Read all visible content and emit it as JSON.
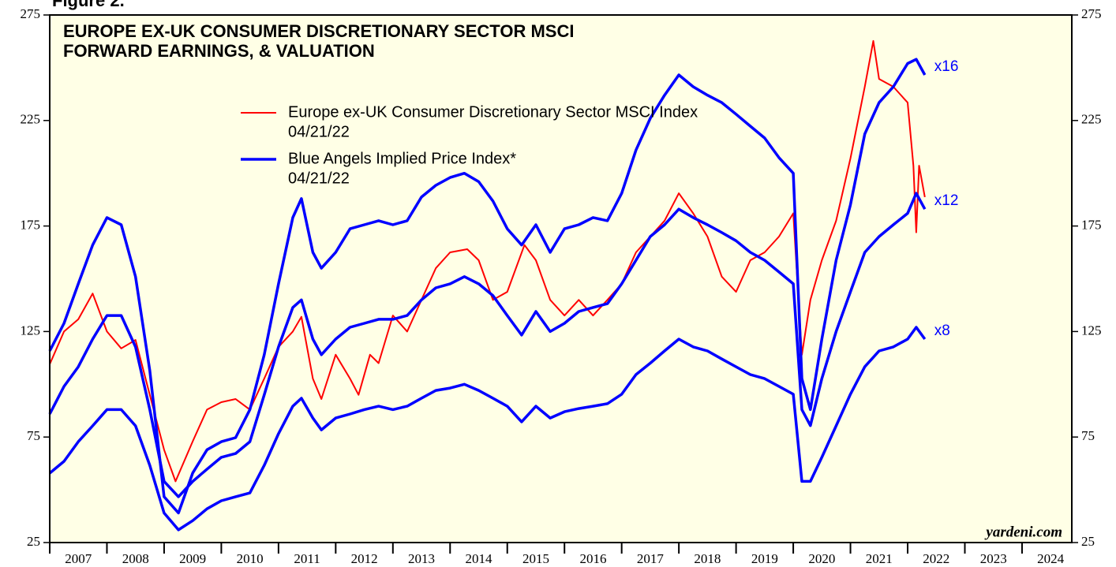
{
  "chart_data": {
    "type": "line",
    "figure_label": "Figure 2.",
    "title": [
      "EUROPE EX-UK CONSUMER DISCRETIONARY SECTOR MSCI",
      "FORWARD EARNINGS, & VALUATION"
    ],
    "source": "yardeni.com",
    "xlim": [
      2007,
      2024.87
    ],
    "xticks": [
      2007,
      2008,
      2009,
      2010,
      2011,
      2012,
      2013,
      2014,
      2015,
      2016,
      2017,
      2018,
      2019,
      2020,
      2021,
      2022,
      2023,
      2024,
      2025
    ],
    "xlabels": [
      2007,
      2008,
      2009,
      2010,
      2011,
      2012,
      2013,
      2014,
      2015,
      2016,
      2017,
      2018,
      2019,
      2020,
      2021,
      2022,
      2023,
      2024
    ],
    "ylim": [
      25,
      275
    ],
    "yticks": [
      25,
      75,
      125,
      175,
      225,
      275
    ],
    "y2lim": [
      25,
      275
    ],
    "y2ticks": [
      25,
      75,
      125,
      175,
      225,
      275
    ],
    "background": "#ffffe6",
    "series": [
      {
        "name": "Europe ex-UK Consumer Discretionary Sector MSCI Index",
        "date": "04/21/22",
        "color": "#ff0000",
        "width": 2,
        "x": [
          2007.0,
          2007.25,
          2007.5,
          2007.75,
          2008.0,
          2008.25,
          2008.5,
          2008.75,
          2009.0,
          2009.2,
          2009.5,
          2009.75,
          2010.0,
          2010.25,
          2010.5,
          2010.75,
          2011.0,
          2011.25,
          2011.4,
          2011.6,
          2011.75,
          2012.0,
          2012.25,
          2012.4,
          2012.6,
          2012.75,
          2013.0,
          2013.25,
          2013.5,
          2013.75,
          2014.0,
          2014.3,
          2014.5,
          2014.75,
          2015.0,
          2015.3,
          2015.5,
          2015.75,
          2016.0,
          2016.25,
          2016.5,
          2016.75,
          2017.0,
          2017.25,
          2017.5,
          2017.75,
          2018.0,
          2018.25,
          2018.5,
          2018.75,
          2019.0,
          2019.25,
          2019.5,
          2019.75,
          2020.0,
          2020.15,
          2020.3,
          2020.5,
          2020.75,
          2021.0,
          2021.25,
          2021.4,
          2021.5,
          2021.75,
          2022.0,
          2022.1,
          2022.15,
          2022.2,
          2022.3
        ],
        "values": [
          109.5,
          125,
          130.8,
          143,
          125,
          117,
          121,
          95,
          69,
          54,
          73,
          88,
          91.5,
          93,
          88,
          102.7,
          117.7,
          125,
          132,
          102.7,
          93,
          114,
          102.7,
          95,
          114,
          110,
          132.6,
          125,
          140,
          155,
          162.5,
          164,
          158.8,
          140,
          143.8,
          166,
          158.8,
          140,
          132.6,
          140,
          132.6,
          140,
          147.6,
          162.5,
          170,
          177.5,
          190.5,
          181,
          170,
          151,
          143.8,
          158.8,
          162.5,
          170,
          181,
          114,
          140,
          158.8,
          177.5,
          207,
          241,
          262.7,
          244.7,
          241,
          233.5,
          203.6,
          172,
          203.6,
          188.7
        ]
      },
      {
        "name": "Blue Angels Implied Price Index*",
        "date": "04/21/22",
        "label": "x16",
        "color": "#0000ff",
        "width": 3.5,
        "x": [
          2007.0,
          2007.25,
          2007.5,
          2007.75,
          2008.0,
          2008.25,
          2008.5,
          2008.75,
          2009.0,
          2009.25,
          2009.5,
          2009.75,
          2010.0,
          2010.25,
          2010.5,
          2010.75,
          2011.0,
          2011.25,
          2011.4,
          2011.6,
          2011.75,
          2012.0,
          2012.25,
          2012.5,
          2012.75,
          2013.0,
          2013.25,
          2013.5,
          2013.75,
          2014.0,
          2014.25,
          2014.5,
          2014.75,
          2015.0,
          2015.25,
          2015.5,
          2015.75,
          2016.0,
          2016.25,
          2016.5,
          2016.75,
          2017.0,
          2017.25,
          2017.5,
          2017.75,
          2018.0,
          2018.25,
          2018.5,
          2018.75,
          2019.0,
          2019.25,
          2019.5,
          2019.75,
          2020.0,
          2020.15,
          2020.3,
          2020.5,
          2020.75,
          2021.0,
          2021.25,
          2021.5,
          2021.75,
          2022.0,
          2022.15,
          2022.3
        ],
        "values": [
          115.8,
          128.9,
          147.6,
          166,
          179,
          175.6,
          151,
          106.5,
          46.7,
          39,
          58,
          69,
          72.8,
          74.7,
          88,
          114,
          147.6,
          179,
          188,
          162.5,
          155,
          162.5,
          173.7,
          175.6,
          177.5,
          175.6,
          177.5,
          188.7,
          194.3,
          198,
          200,
          196,
          186.8,
          173.7,
          166,
          175.6,
          162.5,
          173.7,
          175.6,
          179,
          177.5,
          190.5,
          211,
          226,
          237,
          246.6,
          241,
          237,
          233.5,
          228,
          222.3,
          216.7,
          207.4,
          200,
          102.7,
          88,
          121.4,
          158.8,
          185,
          218.6,
          233.5,
          241,
          252,
          254,
          246.6
        ]
      },
      {
        "label": "x12",
        "color": "#0000ff",
        "width": 3.5,
        "x": [
          2007.0,
          2007.25,
          2007.5,
          2007.75,
          2008.0,
          2008.25,
          2008.5,
          2008.75,
          2009.0,
          2009.25,
          2009.5,
          2009.75,
          2010.0,
          2010.25,
          2010.5,
          2010.75,
          2011.0,
          2011.25,
          2011.4,
          2011.6,
          2011.75,
          2012.0,
          2012.25,
          2012.5,
          2012.75,
          2013.0,
          2013.25,
          2013.5,
          2013.75,
          2014.0,
          2014.25,
          2014.5,
          2014.75,
          2015.0,
          2015.25,
          2015.5,
          2015.75,
          2016.0,
          2016.25,
          2016.5,
          2016.75,
          2017.0,
          2017.25,
          2017.5,
          2017.75,
          2018.0,
          2018.25,
          2018.5,
          2018.75,
          2019.0,
          2019.25,
          2019.5,
          2019.75,
          2020.0,
          2020.15,
          2020.3,
          2020.5,
          2020.75,
          2021.0,
          2021.25,
          2021.5,
          2021.75,
          2022.0,
          2022.15,
          2022.3
        ],
        "values": [
          85.9,
          99,
          108.3,
          121.4,
          132.6,
          132.6,
          117.7,
          88,
          54,
          46.7,
          54,
          59.8,
          65.4,
          67.2,
          72.8,
          95,
          117.7,
          136.4,
          140,
          121.4,
          114,
          121.4,
          127,
          128.9,
          130.8,
          130.8,
          132.6,
          140,
          145.7,
          147.6,
          151,
          147.6,
          142,
          132.6,
          123.3,
          134.5,
          125,
          128.9,
          134.5,
          136.4,
          138.2,
          147.6,
          158.8,
          170,
          175.6,
          183,
          179,
          175.6,
          171.9,
          168,
          162.5,
          158.8,
          153.2,
          147.6,
          88,
          80.4,
          102.7,
          125,
          143.8,
          162.5,
          170,
          175.6,
          181,
          190.5,
          183
        ]
      },
      {
        "label": "x8",
        "color": "#0000ff",
        "width": 3.5,
        "x": [
          2007.0,
          2007.25,
          2007.5,
          2007.75,
          2008.0,
          2008.25,
          2008.5,
          2008.75,
          2009.0,
          2009.25,
          2009.5,
          2009.75,
          2010.0,
          2010.25,
          2010.5,
          2010.75,
          2011.0,
          2011.25,
          2011.4,
          2011.6,
          2011.75,
          2012.0,
          2012.25,
          2012.5,
          2012.75,
          2013.0,
          2013.25,
          2013.5,
          2013.75,
          2014.0,
          2014.25,
          2014.5,
          2014.75,
          2015.0,
          2015.25,
          2015.5,
          2015.75,
          2016.0,
          2016.25,
          2016.5,
          2016.75,
          2017.0,
          2017.25,
          2017.5,
          2017.75,
          2018.0,
          2018.25,
          2018.5,
          2018.75,
          2019.0,
          2019.25,
          2019.5,
          2019.75,
          2020.0,
          2020.15,
          2020.3,
          2020.5,
          2020.75,
          2021.0,
          2021.25,
          2021.5,
          2021.75,
          2022.0,
          2022.15,
          2022.3
        ],
        "values": [
          57.9,
          63.5,
          72.8,
          80.3,
          88,
          88,
          80.3,
          61.6,
          39,
          31,
          35.4,
          41,
          44.8,
          46.7,
          48.5,
          61.6,
          76.6,
          89.6,
          93.4,
          84,
          78.4,
          84,
          85.9,
          88,
          89.6,
          88,
          89.6,
          93.4,
          97.1,
          98.2,
          100,
          97.1,
          93.4,
          89.6,
          82.2,
          89.6,
          84,
          87,
          88.5,
          89.6,
          90.8,
          95.3,
          104.6,
          110,
          115.8,
          121.4,
          117.7,
          115.8,
          112,
          108.3,
          104.6,
          102.7,
          99,
          95.3,
          54,
          54,
          65.4,
          80.3,
          95.3,
          108.3,
          115.8,
          117.7,
          121.4,
          127,
          121.4
        ]
      }
    ]
  }
}
